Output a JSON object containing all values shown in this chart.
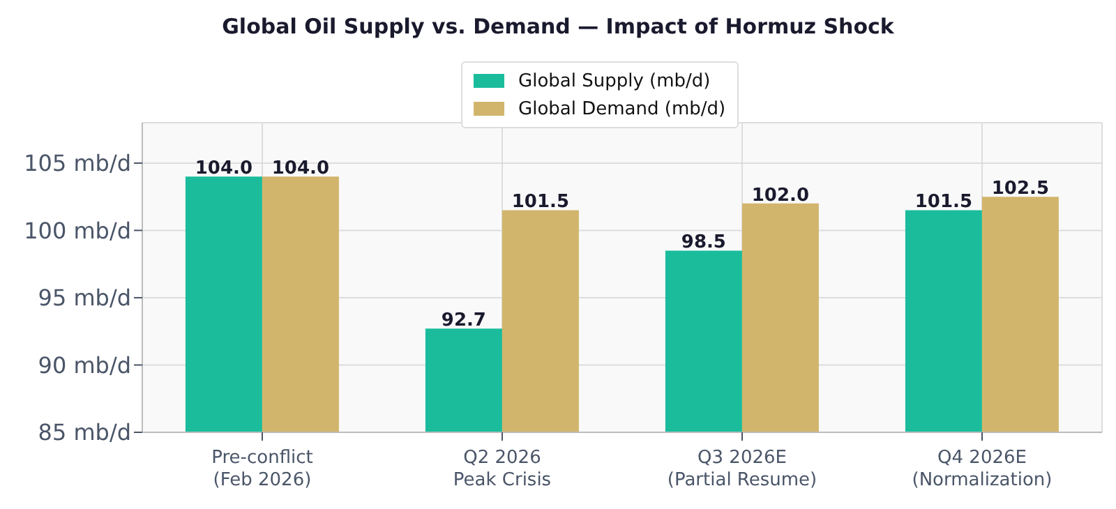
{
  "chart_data": {
    "type": "bar",
    "title": "Global Oil Supply vs. Demand — Impact of Hormuz Shock",
    "categories": [
      "Pre-conflict\n(Feb 2026)",
      "Q2 2026\nPeak Crisis",
      "Q3 2026E\n(Partial Resume)",
      "Q4 2026E\n(Normalization)"
    ],
    "series": [
      {
        "name": "Global Supply (mb/d)",
        "color": "#1abc9c",
        "values": [
          104,
          92.7,
          98.5,
          101.5
        ],
        "value_labels": [
          "104.0",
          "92.7",
          "98.5",
          "101.5"
        ]
      },
      {
        "name": "Global Demand (mb/d)",
        "color": "#d2b56c",
        "values": [
          104,
          101.5,
          102,
          102.5
        ],
        "value_labels": [
          "104.0",
          "101.5",
          "102.0",
          "102.5"
        ]
      }
    ],
    "ylim": [
      85,
      108
    ],
    "yticks": [
      {
        "value": 85,
        "label": "85 mb/d"
      },
      {
        "value": 90,
        "label": "90 mb/d"
      },
      {
        "value": 95,
        "label": "95 mb/d"
      },
      {
        "value": 100,
        "label": "100 mb/d"
      },
      {
        "value": 105,
        "label": "105 mb/d"
      }
    ],
    "grid": true,
    "legend": "top"
  }
}
